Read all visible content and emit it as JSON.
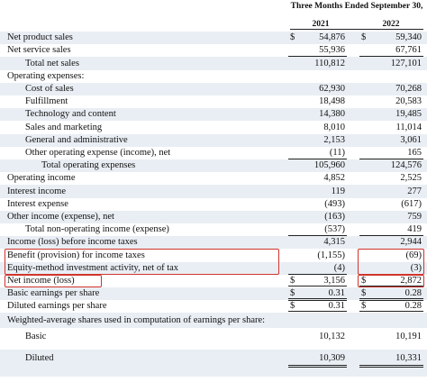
{
  "header": {
    "period": "Three Months Ended September 30,",
    "years": [
      "2021",
      "2022"
    ]
  },
  "rows": [
    {
      "label": "Net product sales",
      "cells": [
        {
          "cur": "$",
          "value": "54,876"
        },
        {
          "cur": "$",
          "value": "59,340"
        }
      ]
    },
    {
      "label": "Net service sales",
      "cells": [
        {
          "value": "55,936"
        },
        {
          "value": "67,761"
        }
      ]
    },
    {
      "label": "Total net sales",
      "cells": [
        {
          "value": "110,812"
        },
        {
          "value": "127,101"
        }
      ]
    },
    {
      "label": "Operating expenses:",
      "cells": []
    },
    {
      "label": "Cost of sales",
      "cells": [
        {
          "value": "62,930"
        },
        {
          "value": "70,268"
        }
      ]
    },
    {
      "label": "Fulfillment",
      "cells": [
        {
          "value": "18,498"
        },
        {
          "value": "20,583"
        }
      ]
    },
    {
      "label": "Technology and content",
      "cells": [
        {
          "value": "14,380"
        },
        {
          "value": "19,485"
        }
      ]
    },
    {
      "label": "Sales and marketing",
      "cells": [
        {
          "value": "8,010"
        },
        {
          "value": "11,014"
        }
      ]
    },
    {
      "label": "General and administrative",
      "cells": [
        {
          "value": "2,153"
        },
        {
          "value": "3,061"
        }
      ]
    },
    {
      "label": "Other operating expense (income), net",
      "cells": [
        {
          "value": "(11)"
        },
        {
          "value": "165"
        }
      ]
    },
    {
      "label": "Total operating expenses",
      "cells": [
        {
          "value": "105,960"
        },
        {
          "value": "124,576"
        }
      ]
    },
    {
      "label": "Operating income",
      "cells": [
        {
          "value": "4,852"
        },
        {
          "value": "2,525"
        }
      ]
    },
    {
      "label": "Interest income",
      "cells": [
        {
          "value": "119"
        },
        {
          "value": "277"
        }
      ]
    },
    {
      "label": "Interest expense",
      "cells": [
        {
          "value": "(493)"
        },
        {
          "value": "(617)"
        }
      ]
    },
    {
      "label": "Other income (expense), net",
      "cells": [
        {
          "value": "(163)"
        },
        {
          "value": "759"
        }
      ]
    },
    {
      "label": "Total non-operating income (expense)",
      "cells": [
        {
          "value": "(537)"
        },
        {
          "value": "419"
        }
      ]
    },
    {
      "label": "Income (loss) before income taxes",
      "cells": [
        {
          "value": "4,315"
        },
        {
          "value": "2,944"
        }
      ]
    },
    {
      "label": "Benefit (provision) for income taxes",
      "cells": [
        {
          "value": "(1,155)"
        },
        {
          "value": "(69)"
        }
      ]
    },
    {
      "label": "Equity-method investment activity, net of tax",
      "cells": [
        {
          "value": "(4)"
        },
        {
          "value": "(3)"
        }
      ]
    },
    {
      "label": "Net income (loss)",
      "cells": [
        {
          "cur": "$",
          "value": "3,156"
        },
        {
          "cur": "$",
          "value": "2,872"
        }
      ]
    },
    {
      "label": "Basic earnings per share",
      "cells": [
        {
          "cur": "$",
          "value": "0.31"
        },
        {
          "cur": "$",
          "value": "0.28"
        }
      ]
    },
    {
      "label": "Diluted earnings per share",
      "cells": [
        {
          "cur": "$",
          "value": "0.31"
        },
        {
          "cur": "$",
          "value": "0.28"
        }
      ]
    },
    {
      "label": "Weighted-average shares used in computation of earnings per share:",
      "cells": []
    },
    {
      "label": "Basic",
      "cells": [
        {
          "value": "10,132"
        },
        {
          "value": "10,191"
        }
      ]
    },
    {
      "label": "Diluted",
      "cells": [
        {
          "value": "10,309"
        },
        {
          "value": "10,331"
        }
      ]
    }
  ]
}
